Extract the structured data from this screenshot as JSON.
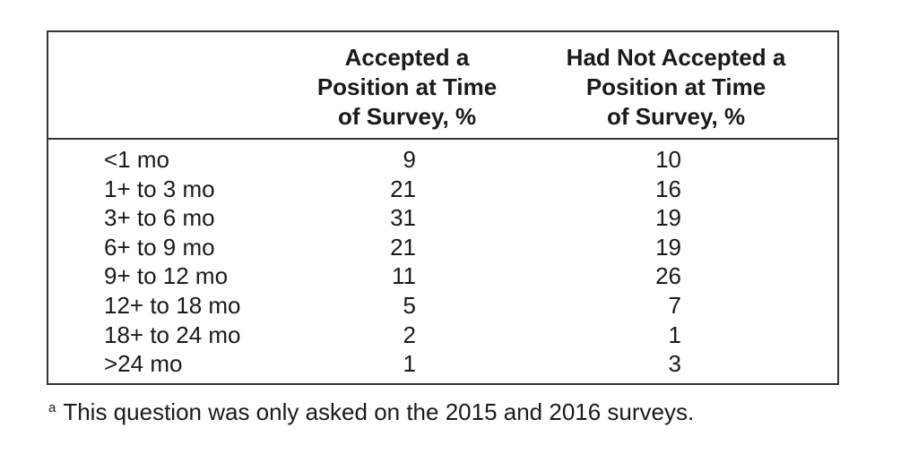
{
  "table": {
    "headers": [
      "",
      "Accepted a\nPosition at Time\nof Survey, %",
      "Had Not Accepted a\nPosition at Time\nof Survey, %"
    ],
    "rows": [
      {
        "label": "<1 mo",
        "accepted": "9",
        "not_accepted": "10"
      },
      {
        "label": "1+ to 3 mo",
        "accepted": "21",
        "not_accepted": "16"
      },
      {
        "label": "3+ to 6 mo",
        "accepted": "31",
        "not_accepted": "19"
      },
      {
        "label": "6+ to 9 mo",
        "accepted": "21",
        "not_accepted": "19"
      },
      {
        "label": "9+ to 12 mo",
        "accepted": "11",
        "not_accepted": "26"
      },
      {
        "label": "12+ to 18 mo",
        "accepted": "5",
        "not_accepted": "7"
      },
      {
        "label": "18+ to 24 mo",
        "accepted": "2",
        "not_accepted": "1"
      },
      {
        "label": ">24 mo",
        "accepted": "1",
        "not_accepted": "3"
      }
    ]
  },
  "footnote": {
    "marker": "a",
    "text": "This question was only asked on the 2015 and 2016 surveys."
  }
}
